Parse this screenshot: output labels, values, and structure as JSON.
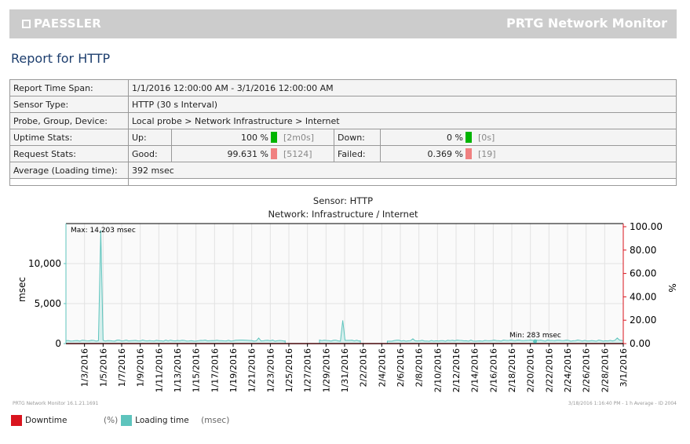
{
  "header": {
    "brand": "PAESSLER",
    "product": "PRTG Network Monitor"
  },
  "title": "Report for HTTP",
  "info": {
    "time_span_label": "Report Time Span:",
    "time_span": "1/1/2016 12:00:00 AM - 3/1/2016 12:00:00 AM",
    "sensor_type_label": "Sensor Type:",
    "sensor_type": "HTTP (30 s Interval)",
    "path_label": "Probe, Group, Device:",
    "path": "Local probe > Network Infrastructure > Internet",
    "uptime_label": "Uptime Stats:",
    "up_label": "Up:",
    "up_value": "100 %",
    "up_time": "[2m0s]",
    "down_label": "Down:",
    "down_value": "0 %",
    "down_time": "[0s]",
    "request_label": "Request Stats:",
    "good_label": "Good:",
    "good_value": "99.631 %",
    "good_count": "[5124]",
    "failed_label": "Failed:",
    "failed_value": "0.369 %",
    "failed_count": "[19]",
    "avg_label": "Average (Loading time):",
    "avg_value": "392 msec"
  },
  "colors": {
    "up": "#00b400",
    "bad": "#f08080",
    "downtime": "#d9141e",
    "loading": "#5ec4bd"
  },
  "chart_data": {
    "type": "line",
    "title": "Sensor: HTTP",
    "subtitle": "Network: Infrastructure / Internet",
    "ylabel": "msec",
    "y2label": "%",
    "ylim": [
      0,
      15000
    ],
    "y2lim": [
      0,
      100
    ],
    "yticks": [
      "0",
      "5,000",
      "10,000"
    ],
    "yticks_values": [
      0,
      5000,
      10000
    ],
    "y2ticks": [
      "0.00",
      "20.00",
      "40.00",
      "60.00",
      "80.00",
      "100.00"
    ],
    "y2ticks_values": [
      0,
      20,
      40,
      60,
      80,
      100
    ],
    "xlim_days": [
      0,
      60
    ],
    "xticks": [
      "1/3/2016",
      "1/5/2016",
      "1/7/2016",
      "1/9/2016",
      "1/11/2016",
      "1/13/2016",
      "1/15/2016",
      "1/17/2016",
      "1/19/2016",
      "1/21/2016",
      "1/23/2016",
      "1/25/2016",
      "1/27/2016",
      "1/29/2016",
      "1/31/2016",
      "2/2/2016",
      "2/4/2016",
      "2/6/2016",
      "2/8/2016",
      "2/10/2016",
      "2/12/2016",
      "2/14/2016",
      "2/16/2016",
      "2/18/2016",
      "2/20/2016",
      "2/22/2016",
      "2/24/2016",
      "2/26/2016",
      "2/28/2016",
      "3/1/2016"
    ],
    "series": [
      {
        "name": "Downtime",
        "unit": "(%)",
        "segments": [
          [
            0,
            60
          ]
        ],
        "value": 0
      },
      {
        "name": "Loading time",
        "unit": "(msec)",
        "baseline": 350,
        "segments": [
          [
            0,
            23.6
          ],
          [
            27.3,
            31.7
          ],
          [
            34.6,
            60
          ]
        ],
        "spikes": [
          [
            3.8,
            14203
          ],
          [
            20.8,
            700
          ],
          [
            29.9,
            2900
          ],
          [
            37.3,
            600
          ],
          [
            59.3,
            700
          ]
        ]
      }
    ],
    "annotations": {
      "max": "Max: 14,203 msec",
      "max_day": 3.8,
      "min": "Min: 283 msec",
      "min_day": 50.5
    }
  },
  "footer": {
    "left": "PRTG Network Monitor 16.1.21.1691",
    "right": "3/18/2016 1:16:40 PM - 1 h Average - ID 2004"
  },
  "legend": {
    "downtime": "Downtime",
    "downtime_unit": "(%)",
    "loading": "Loading time",
    "loading_unit": "(msec)"
  }
}
